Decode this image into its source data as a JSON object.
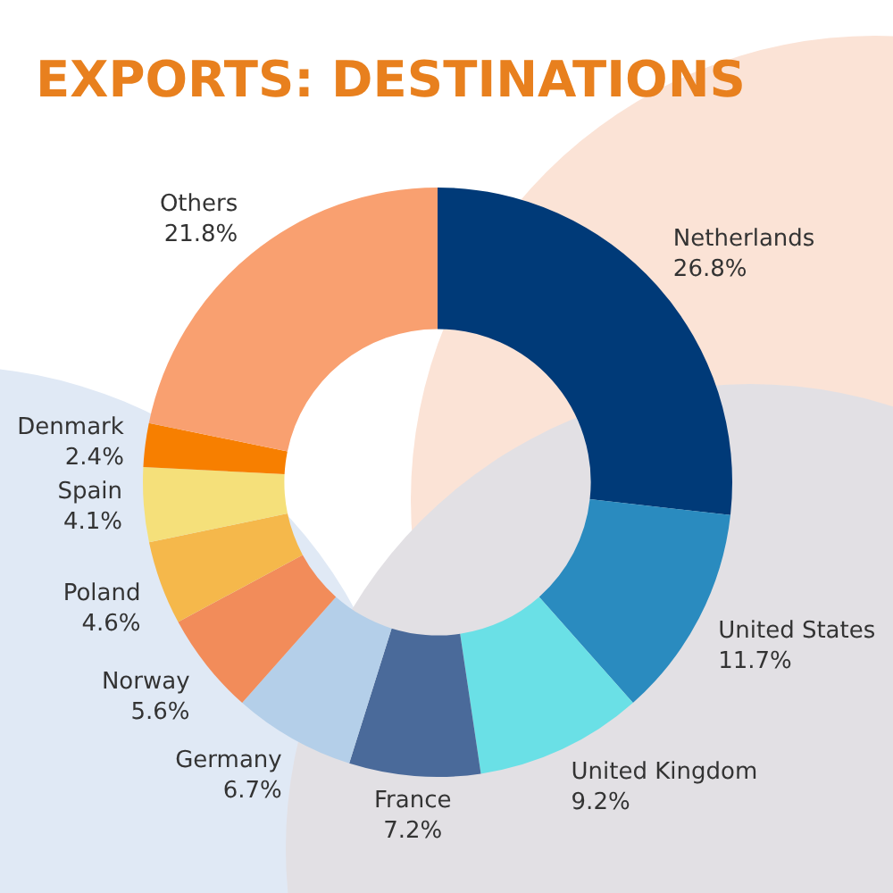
{
  "chart_data": {
    "type": "donut",
    "title": "EXPORTS: DESTINATIONS",
    "categories": [
      "Netherlands",
      "United States",
      "United Kingdom",
      "France",
      "Germany",
      "Norway",
      "Poland",
      "Spain",
      "Denmark",
      "Others"
    ],
    "values": [
      26.8,
      11.7,
      9.2,
      7.2,
      6.7,
      5.6,
      4.6,
      4.1,
      2.4,
      21.8
    ],
    "value_labels": [
      "26.8%",
      "11.7%",
      "9.2%",
      "7.2%",
      "6.7%",
      "5.6%",
      "4.6%",
      "4.1%",
      "2.4%",
      "21.8%"
    ],
    "colors": [
      "#003a78",
      "#2a8bbf",
      "#6ae0e6",
      "#4a6a9a",
      "#b4cfe9",
      "#f28c5a",
      "#f5b84b",
      "#f5e07a",
      "#f77f00",
      "#f9a070"
    ],
    "legend": false
  }
}
